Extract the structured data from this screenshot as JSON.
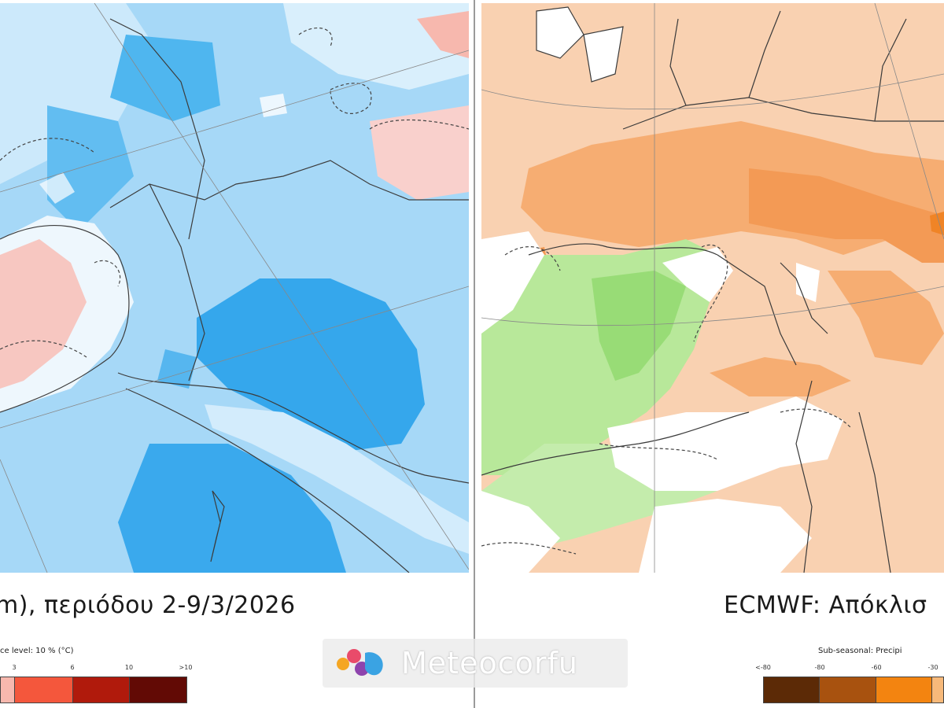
{
  "left_panel": {
    "title": "m), περιόδου 2-9/3/2026",
    "legend_caption": "ce level: 10 % (°C)",
    "legend_ticks": [
      "3",
      "6",
      "10",
      ">10"
    ],
    "legend_colors": [
      "#f7b8ae",
      "#f4573c",
      "#b01a0c",
      "#620a05"
    ]
  },
  "right_panel": {
    "title": "ECMWF: Απόκλισ",
    "legend_caption": "Sub-seasonal: Precipi",
    "legend_ticks": [
      "<-80",
      "-80",
      "-60",
      "-30"
    ],
    "legend_colors": [
      "#5c2a06",
      "#a8520f",
      "#f38410",
      "#f7b97a"
    ]
  },
  "watermark": {
    "text": "Meteocorfu",
    "logo_colors": [
      "#f5a623",
      "#e94b6a",
      "#8e44ad",
      "#3aa3e3"
    ]
  }
}
